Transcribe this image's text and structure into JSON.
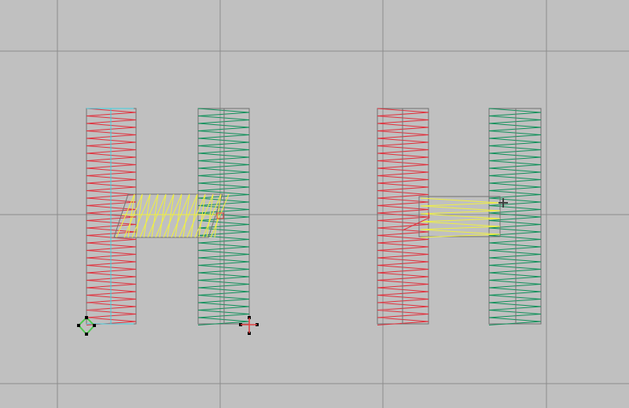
{
  "canvas": {
    "background": "#c0c0c0",
    "grid_color": "#8c8c8c",
    "grid_on": true
  },
  "colors": {
    "left_column": "#e0303c",
    "right_column": "#10905a",
    "crossbar": "#f0f040",
    "center_line_selected": "#40d0e0",
    "outline": "#707070",
    "handle": "#000000",
    "start_marker": "#50c850",
    "end_marker": "#e04040"
  },
  "designs": [
    {
      "letter": "H",
      "state": "selected, slanted crossbar"
    },
    {
      "letter": "H",
      "state": "horizontal crossbar"
    }
  ]
}
